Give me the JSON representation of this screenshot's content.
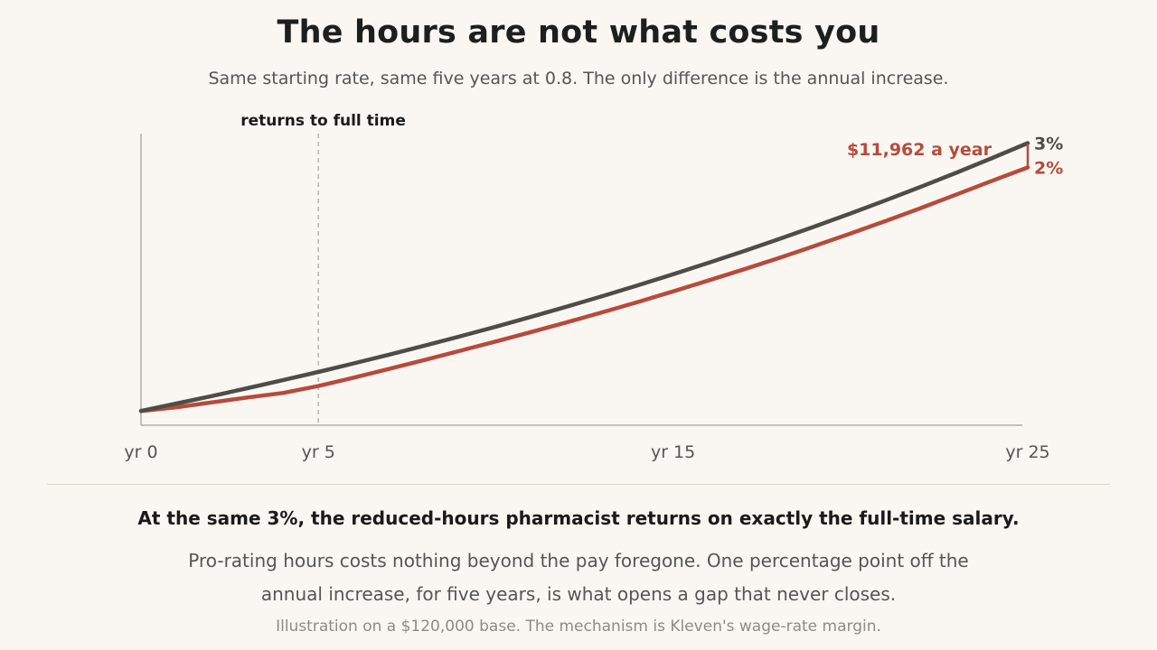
{
  "title": "The hours are not what costs you",
  "subtitle": "Same starting rate, same five years at 0.8. The only difference is the annual increase.",
  "chart_data": {
    "type": "line",
    "x": [
      0,
      1,
      2,
      3,
      4,
      5,
      6,
      7,
      8,
      9,
      10,
      11,
      12,
      13,
      14,
      15,
      16,
      17,
      18,
      19,
      20,
      21,
      22,
      23,
      24,
      25
    ],
    "xticks": [
      "yr 0",
      "yr 5",
      "yr 15",
      "yr 25"
    ],
    "xtick_values": [
      0,
      5,
      15,
      25
    ],
    "series": [
      {
        "name": "3%",
        "color": "#4f4c48",
        "values": [
          120000,
          123600,
          127308,
          131127,
          135061,
          139113,
          143286,
          147585,
          152012,
          156573,
          161270,
          166108,
          171091,
          176224,
          181511,
          186956,
          192565,
          198342,
          204292,
          210421,
          216733,
          223235,
          229932,
          236830,
          243935,
          251253
        ]
      },
      {
        "name": "2%",
        "color": "#b84a3b",
        "values": [
          120000,
          121800,
          124200,
          126600,
          128800,
          132200,
          136300,
          140600,
          145000,
          149500,
          154000,
          158650,
          163400,
          168300,
          173350,
          178550,
          183900,
          189400,
          195000,
          200900,
          206900,
          213100,
          219500,
          226100,
          232800,
          239291
        ]
      }
    ],
    "annotation": "$11,962 a year",
    "marker_label": "returns to full time",
    "marker_x": 5,
    "ylim": [
      113000,
      255000
    ],
    "xlim": [
      0,
      25
    ],
    "grid": false
  },
  "headline": "At the same 3%, the reduced-hours pharmacist returns on exactly the full-time salary.",
  "body": "Pro-rating hours costs nothing beyond the pay foregone. One percentage point off the annual increase, for five years, is what opens a gap that never closes.",
  "note": "Illustration on a $120,000 base. The mechanism is Kleven's wage-rate margin."
}
